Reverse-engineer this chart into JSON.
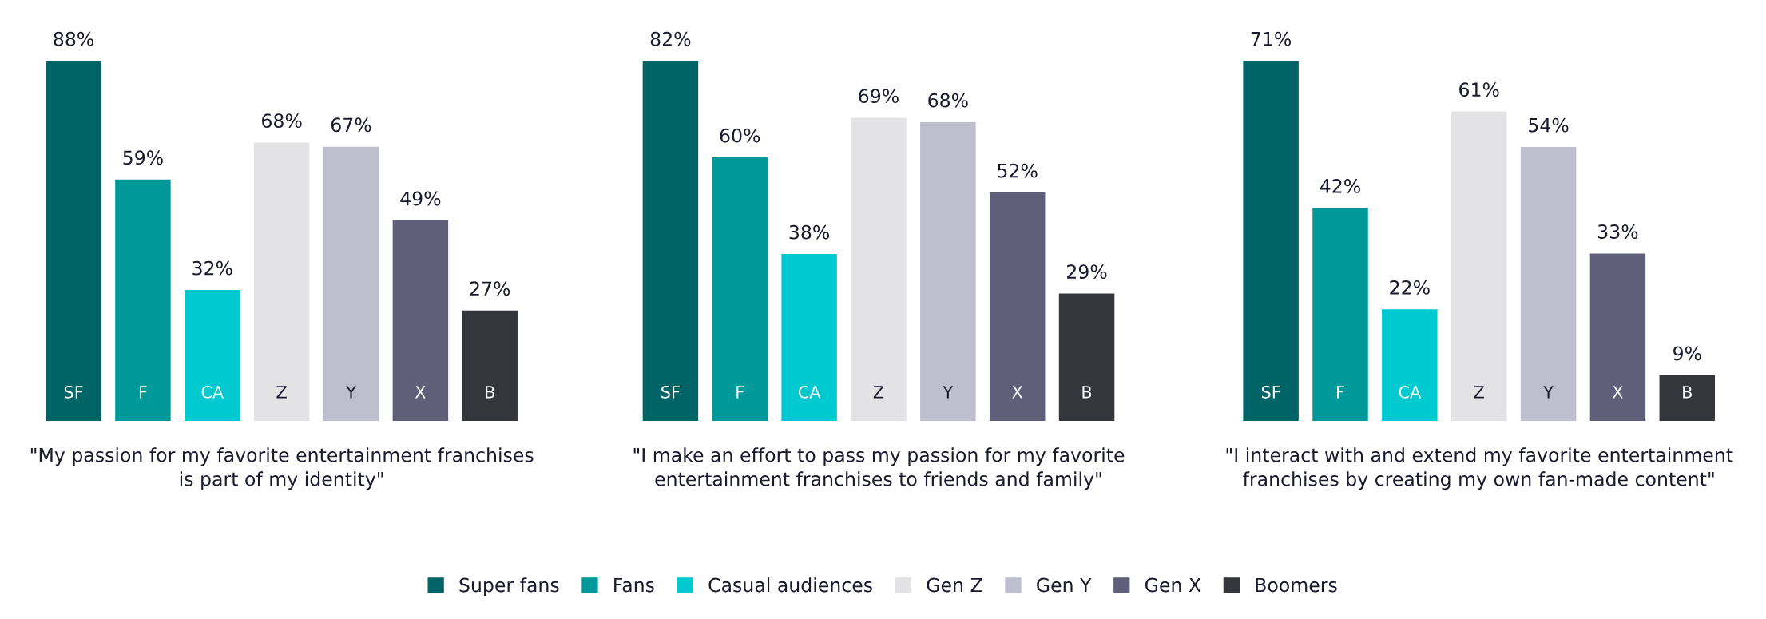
{
  "chart_data": [
    {
      "type": "bar",
      "categories": [
        "SF",
        "F",
        "CA",
        "Z",
        "Y",
        "X",
        "B"
      ],
      "values": [
        88,
        59,
        32,
        68,
        67,
        49,
        27
      ],
      "value_labels": [
        "88%",
        "59%",
        "32%",
        "68%",
        "67%",
        "49%",
        "27%"
      ],
      "colors": [
        "#006466",
        "#009999",
        "#00c9d0",
        "#e3e3e6",
        "#bfbecf",
        "#5f5f7a",
        "#35363c"
      ],
      "xlabel": "\"My passion for my favorite entertainment franchises is part of my identity\"",
      "legend": false
    },
    {
      "type": "bar",
      "categories": [
        "SF",
        "F",
        "CA",
        "Z",
        "Y",
        "X",
        "B"
      ],
      "series": [
        {
          "name": "Super fans",
          "color": "#006466",
          "values": [
            82,
            null,
            null,
            null,
            null,
            null,
            null
          ],
          "value_labels": [
            "82%",
            null,
            null,
            null,
            null,
            null,
            null
          ]
        },
        {
          "name": "Fans",
          "color": "#009999",
          "values": [
            null,
            60,
            null,
            null,
            null,
            null,
            null
          ],
          "value_labels": [
            null,
            "60%",
            null,
            null,
            null,
            null,
            null
          ]
        },
        {
          "name": "Casual audiences",
          "color": "#00c9d0",
          "values": [
            null,
            null,
            38,
            null,
            null,
            null,
            null
          ],
          "value_labels": [
            null,
            null,
            "38%",
            null,
            null,
            null,
            null
          ]
        },
        {
          "name": "Gen Z",
          "color": "#e3e3e6",
          "values": [
            null,
            null,
            null,
            69,
            null,
            null,
            null
          ],
          "value_labels": [
            null,
            null,
            null,
            "69%",
            null,
            null,
            null
          ]
        },
        {
          "name": "Gen Y",
          "color": "#bfbecf",
          "values": [
            null,
            null,
            null,
            null,
            68,
            null,
            null
          ],
          "value_labels": [
            null,
            null,
            null,
            null,
            "68%",
            null,
            null
          ]
        },
        {
          "name": "Gen X",
          "color": "#5f5f7a",
          "values": [
            null,
            null,
            null,
            null,
            null,
            52,
            null
          ],
          "value_labels": [
            null,
            null,
            null,
            null,
            null,
            "52%",
            null
          ]
        },
        {
          "name": "Boomers",
          "color": "#35363c",
          "values": [
            null,
            null,
            null,
            null,
            null,
            null,
            29
          ],
          "value_labels": [
            null,
            null,
            null,
            null,
            null,
            null,
            "29%"
          ]
        }
      ],
      "xlabel": "\"I make an effort to pass my passion for my favorite entertainment franchises to friends and family\"",
      "legend": "bottom"
    },
    {
      "type": "bar",
      "categories": [
        "SF",
        "F",
        "CA",
        "Z",
        "Y",
        "X",
        "B"
      ],
      "values": [
        71,
        42,
        22,
        61,
        54,
        33,
        9
      ],
      "value_labels": [
        "71%",
        "42%",
        "22%",
        "61%",
        "54%",
        "33%",
        "9%"
      ],
      "colors": [
        "#006466",
        "#009999",
        "#00c9d0",
        "#e3e3e6",
        "#bfbecf",
        "#5f5f7a",
        "#35363c"
      ],
      "xlabel": "\"I interact with and extend my favorite entertainment franchises by creating my own fan-made content\"",
      "legend": false
    }
  ]
}
